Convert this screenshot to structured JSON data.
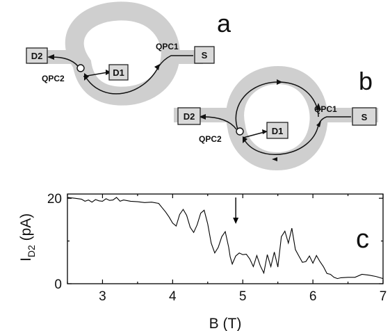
{
  "diagram_a": {
    "panel_label": "a",
    "boxes": {
      "source": "S",
      "drain1": "D1",
      "drain2": "D2"
    },
    "qpc1": "QPC1",
    "qpc2": "QPC2"
  },
  "diagram_b": {
    "panel_label": "b",
    "boxes": {
      "source": "S",
      "drain1": "D1",
      "drain2": "D2"
    },
    "qpc1": "QPC1",
    "qpc2": "QPC2"
  },
  "chart_data": {
    "type": "line",
    "panel_label": "c",
    "xlabel": "B (T)",
    "ylabel_main": "I",
    "ylabel_sub": "D2",
    "ylabel_unit": " (pA)",
    "xlim": [
      2.5,
      7.0
    ],
    "ylim": [
      0,
      21
    ],
    "xticks": [
      3,
      4,
      5,
      6,
      7
    ],
    "yticks": [
      0,
      20
    ],
    "grid": false,
    "annotation": {
      "type": "arrow",
      "x": 4.9,
      "y": 14
    },
    "series": [
      {
        "color": "#000000",
        "x": [
          2.5,
          2.6,
          2.7,
          2.75,
          2.8,
          2.85,
          2.9,
          2.95,
          3.0,
          3.05,
          3.1,
          3.15,
          3.2,
          3.25,
          3.3,
          3.4,
          3.5,
          3.6,
          3.7,
          3.8,
          3.85,
          3.9,
          3.95,
          4.0,
          4.05,
          4.1,
          4.15,
          4.2,
          4.25,
          4.3,
          4.35,
          4.4,
          4.45,
          4.5,
          4.55,
          4.6,
          4.65,
          4.7,
          4.75,
          4.8,
          4.82,
          4.85,
          4.9,
          4.95,
          5.0,
          5.05,
          5.1,
          5.15,
          5.2,
          5.25,
          5.3,
          5.35,
          5.4,
          5.45,
          5.5,
          5.55,
          5.6,
          5.65,
          5.7,
          5.75,
          5.8,
          5.85,
          5.9,
          5.95,
          6.0,
          6.05,
          6.1,
          6.15,
          6.2,
          6.25,
          6.3,
          6.35,
          6.4,
          6.5,
          6.6,
          6.7,
          6.8,
          6.9,
          7.0
        ],
        "y": [
          20.2,
          20.0,
          19.8,
          19.3,
          19.6,
          19.1,
          19.7,
          19.4,
          19.3,
          19.9,
          19.5,
          19.6,
          20.2,
          19.3,
          19.6,
          19.3,
          19.2,
          19.0,
          19.1,
          18.8,
          17.8,
          16.8,
          15.6,
          14.2,
          13.5,
          16.2,
          17.4,
          16.0,
          13.2,
          12.0,
          13.8,
          16.5,
          17.2,
          14.0,
          9.5,
          7.2,
          8.5,
          11.0,
          12.2,
          8.5,
          6.3,
          4.6,
          6.5,
          7.2,
          6.8,
          6.9,
          5.8,
          4.0,
          6.6,
          4.2,
          2.5,
          6.8,
          4.0,
          7.4,
          3.9,
          11.0,
          12.3,
          9.5,
          13.0,
          8.0,
          6.5,
          5.0,
          5.2,
          6.5,
          4.8,
          6.6,
          5.2,
          4.0,
          2.4,
          2.2,
          1.5,
          1.2,
          1.4,
          1.5,
          1.5,
          2.2,
          2.0,
          1.7,
          1.2
        ]
      }
    ]
  }
}
